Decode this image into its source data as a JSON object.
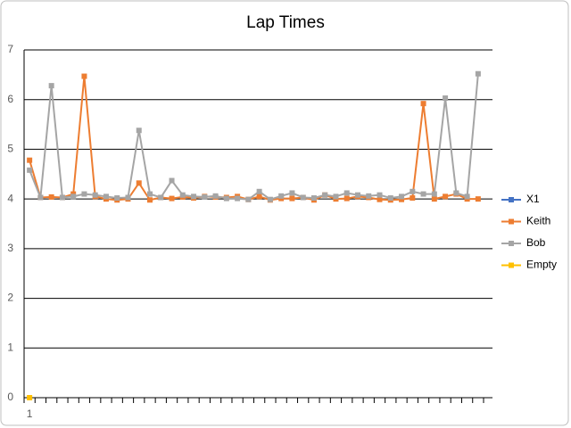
{
  "chart_data": {
    "type": "line",
    "title": "Lap Times",
    "categories": [
      "1",
      null,
      null,
      null,
      null,
      null,
      null,
      null,
      null,
      null,
      null,
      null,
      null,
      null,
      null,
      null,
      null,
      null,
      null,
      null,
      null,
      null,
      null,
      null,
      null,
      null,
      null,
      null,
      null,
      null,
      null,
      null,
      null,
      null,
      null,
      null,
      null,
      null,
      null,
      null,
      null,
      null
    ],
    "series": [
      {
        "name": "X1",
        "color": "#4472c4",
        "values": [
          null,
          null,
          null,
          null,
          null,
          null,
          null,
          null,
          null,
          null,
          null,
          null,
          null,
          null,
          null,
          null,
          null,
          null,
          null,
          null,
          null,
          null,
          null,
          null,
          null,
          null,
          null,
          null,
          null,
          null,
          null,
          null,
          null,
          null,
          null,
          null,
          null,
          null,
          null,
          null,
          null,
          null
        ]
      },
      {
        "name": "Keith",
        "color": "#ed7d31",
        "values": [
          4.78,
          4.03,
          4.04,
          4.03,
          4.1,
          6.47,
          4.05,
          4.0,
          3.98,
          4.0,
          4.32,
          3.98,
          4.03,
          4.01,
          4.04,
          4.02,
          4.05,
          4.04,
          4.03,
          4.05,
          3.99,
          4.05,
          3.98,
          4.01,
          4.01,
          4.03,
          3.98,
          4.08,
          4.0,
          4.01,
          4.05,
          4.03,
          3.99,
          3.98,
          3.99,
          4.02,
          5.92,
          4.0,
          4.05,
          4.1,
          4.0,
          4.0
        ]
      },
      {
        "name": "Bob",
        "color": "#a5a5a5",
        "values": [
          4.58,
          4.03,
          6.28,
          4.03,
          4.05,
          4.1,
          4.08,
          4.05,
          4.02,
          4.03,
          5.38,
          4.1,
          4.03,
          4.37,
          4.08,
          4.05,
          4.04,
          4.06,
          4.01,
          4.01,
          3.99,
          4.15,
          3.99,
          4.06,
          4.12,
          4.03,
          4.02,
          4.08,
          4.05,
          4.12,
          4.08,
          4.06,
          4.08,
          4.02,
          4.05,
          4.15,
          4.1,
          4.1,
          6.03,
          4.12,
          4.05,
          6.52
        ]
      },
      {
        "name": "Empty",
        "color": "#ffc000",
        "values": [
          0,
          null,
          null,
          null,
          null,
          null,
          null,
          null,
          null,
          null,
          null,
          null,
          null,
          null,
          null,
          null,
          null,
          null,
          null,
          null,
          null,
          null,
          null,
          null,
          null,
          null,
          null,
          null,
          null,
          null,
          null,
          null,
          null,
          null,
          null,
          null,
          null,
          null,
          null,
          null,
          null,
          null
        ]
      }
    ],
    "ylim": [
      0,
      7
    ],
    "yticks": [
      0,
      1,
      2,
      3,
      4,
      5,
      6,
      7
    ],
    "grid": true,
    "legend": "right"
  }
}
